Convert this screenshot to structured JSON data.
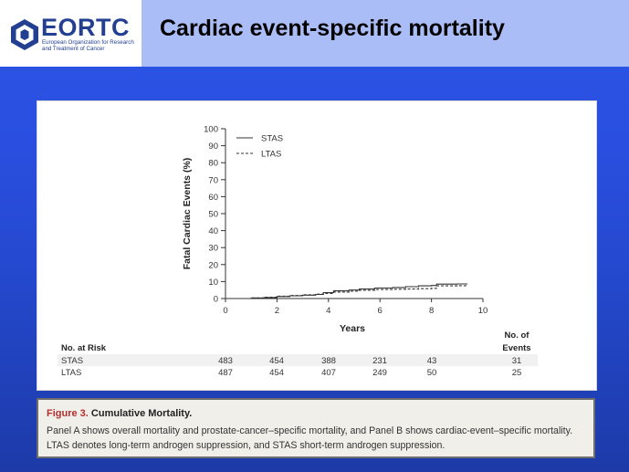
{
  "slide": {
    "title": "Cardiac event-specific mortality"
  },
  "logo": {
    "name": "EORTC",
    "subtitle": "European Organization for Research and Treatment of Cancer"
  },
  "colors": {
    "header_bg": "#aabdf7",
    "slide_bg": "#2b55e6",
    "figure_red": "#b22f2f",
    "risk_band": "#f1f1f1"
  },
  "chart_data": {
    "type": "line",
    "title": "",
    "xlabel": "Years",
    "ylabel": "Fatal Cardiac Events (%)",
    "xlim": [
      0,
      10
    ],
    "ylim": [
      0,
      100
    ],
    "x_ticks": [
      "0",
      "2",
      "4",
      "6",
      "8",
      "10"
    ],
    "y_ticks": [
      "0",
      "10",
      "20",
      "30",
      "40",
      "50",
      "60",
      "70",
      "80",
      "90",
      "100"
    ],
    "legend_position": "top-left",
    "series": [
      {
        "name": "STAS",
        "style": "solid",
        "points": [
          [
            0,
            0
          ],
          [
            0.6,
            0
          ],
          [
            1,
            0.3
          ],
          [
            1.5,
            0.6
          ],
          [
            2,
            1.2
          ],
          [
            2.5,
            1.6
          ],
          [
            3,
            2
          ],
          [
            3.5,
            2.4
          ],
          [
            3.8,
            3.5
          ],
          [
            4.2,
            4.5
          ],
          [
            4.8,
            5
          ],
          [
            5.2,
            5.6
          ],
          [
            5.8,
            6.2
          ],
          [
            6.5,
            6.5
          ],
          [
            7,
            7
          ],
          [
            7.5,
            7.5
          ],
          [
            8,
            7.7
          ],
          [
            8.2,
            8.5
          ],
          [
            9,
            8.6
          ],
          [
            9.4,
            8.6
          ]
        ]
      },
      {
        "name": "LTAS",
        "style": "dashed",
        "points": [
          [
            0,
            0
          ],
          [
            0.6,
            0
          ],
          [
            1,
            0.4
          ],
          [
            1.5,
            0.8
          ],
          [
            2,
            1.4
          ],
          [
            2.5,
            1.8
          ],
          [
            3,
            2.2
          ],
          [
            3.5,
            2.6
          ],
          [
            3.8,
            3
          ],
          [
            4.2,
            3.8
          ],
          [
            4.8,
            4.3
          ],
          [
            5.2,
            4.9
          ],
          [
            5.8,
            5.3
          ],
          [
            6.5,
            5.5
          ],
          [
            7,
            5.6
          ],
          [
            7.5,
            5.8
          ],
          [
            8,
            6
          ],
          [
            8.2,
            7.5
          ],
          [
            9,
            7.6
          ],
          [
            9.4,
            7.6
          ]
        ]
      }
    ],
    "risk_table": {
      "header": "No. at Risk",
      "events_header_line1": "No. of",
      "events_header_line2": "Events",
      "rows": [
        {
          "label": "STAS",
          "values": [
            "483",
            "454",
            "388",
            "231",
            "43"
          ],
          "events": "31"
        },
        {
          "label": "LTAS",
          "values": [
            "487",
            "454",
            "407",
            "249",
            "50"
          ],
          "events": "25"
        }
      ]
    }
  },
  "caption": {
    "figure_label": "Figure 3.",
    "heading": "Cumulative Mortality.",
    "body": "Panel A shows overall mortality and prostate-cancer–specific mortality, and Panel B shows cardiac-event–specific mortality. LTAS denotes long-term androgen suppression, and STAS short-term androgen suppression."
  }
}
